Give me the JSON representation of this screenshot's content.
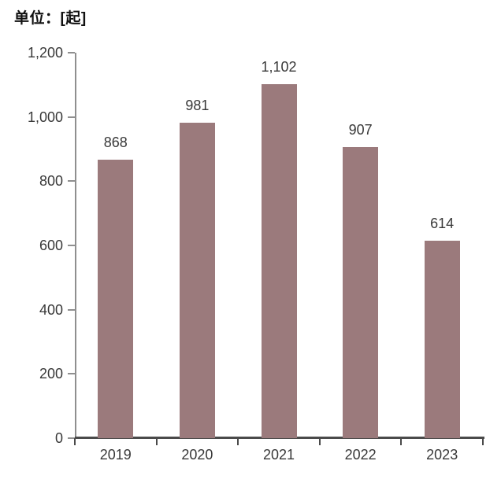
{
  "title": "单位：[起]",
  "colors": {
    "bar": "#9b7a7c",
    "x_axis": "#4a4a4a",
    "y_axis": "#8f8f8f",
    "text": "#383838",
    "title_text": "#111111",
    "background": "#ffffff"
  },
  "chart_data": {
    "type": "bar",
    "title": "单位：[起]",
    "categories": [
      "2019",
      "2020",
      "2021",
      "2022",
      "2023"
    ],
    "values": [
      868,
      981,
      1102,
      907,
      614
    ],
    "value_labels": [
      "868",
      "981",
      "1,102",
      "907",
      "614"
    ],
    "xlabel": "",
    "ylabel": "",
    "ylim": [
      0,
      1200
    ],
    "ytick_interval": 200,
    "ytick_labels": [
      "0",
      "200",
      "400",
      "600",
      "800",
      "1,000",
      "1,200"
    ],
    "grid": false,
    "legend": null,
    "bar_color": "#9b7a7c"
  }
}
